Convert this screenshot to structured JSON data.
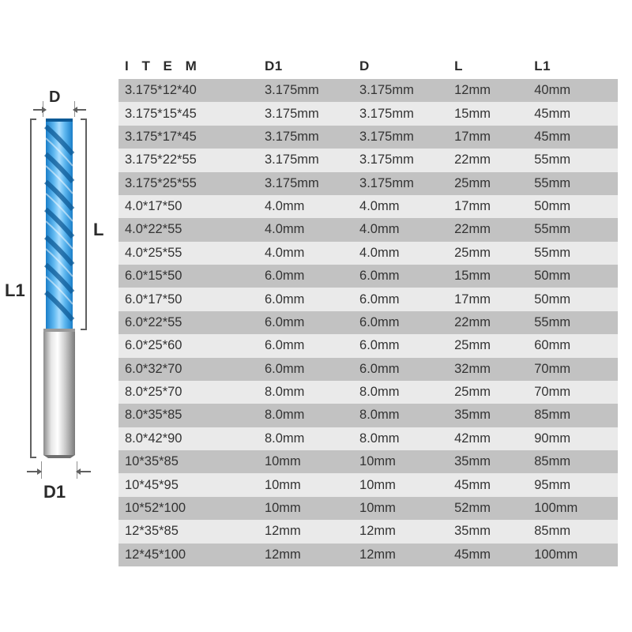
{
  "diagram": {
    "labels": {
      "D": "D",
      "L": "L",
      "L1": "L1",
      "D1": "D1"
    },
    "bit_colors": {
      "flute_blue_light": "#5fb8f0",
      "flute_blue_dark": "#1a7ec8",
      "flute_highlight": "#a8ddff",
      "shank_light": "#f0f0f0",
      "shank_mid": "#c8c8c8",
      "shank_dark": "#8a8a8a"
    },
    "label_color": "#2b2b2b",
    "arrow_color": "#606060"
  },
  "table": {
    "columns": [
      "I T E M",
      "D1",
      "D",
      "L",
      "L1"
    ],
    "column_widths_pct": [
      28,
      19,
      19,
      16,
      18
    ],
    "header_fontsize": 17,
    "cell_fontsize": 16.5,
    "text_color": "#333333",
    "stripe_colors": [
      "#c2c2c2",
      "#eaeaea"
    ],
    "rows": [
      [
        "3.175*12*40",
        "3.175mm",
        "3.175mm",
        "12mm",
        "40mm"
      ],
      [
        "3.175*15*45",
        "3.175mm",
        "3.175mm",
        "15mm",
        "45mm"
      ],
      [
        "3.175*17*45",
        "3.175mm",
        "3.175mm",
        "17mm",
        "45mm"
      ],
      [
        "3.175*22*55",
        "3.175mm",
        "3.175mm",
        "22mm",
        "55mm"
      ],
      [
        "3.175*25*55",
        "3.175mm",
        "3.175mm",
        "25mm",
        "55mm"
      ],
      [
        "4.0*17*50",
        "4.0mm",
        "4.0mm",
        "17mm",
        "50mm"
      ],
      [
        "4.0*22*55",
        "4.0mm",
        "4.0mm",
        "22mm",
        "55mm"
      ],
      [
        "4.0*25*55",
        "4.0mm",
        "4.0mm",
        "25mm",
        "55mm"
      ],
      [
        "6.0*15*50",
        "6.0mm",
        "6.0mm",
        "15mm",
        "50mm"
      ],
      [
        "6.0*17*50",
        "6.0mm",
        "6.0mm",
        "17mm",
        "50mm"
      ],
      [
        "6.0*22*55",
        "6.0mm",
        "6.0mm",
        "22mm",
        "55mm"
      ],
      [
        "6.0*25*60",
        "6.0mm",
        "6.0mm",
        "25mm",
        "60mm"
      ],
      [
        "6.0*32*70",
        "6.0mm",
        "6.0mm",
        "32mm",
        "70mm"
      ],
      [
        "8.0*25*70",
        "8.0mm",
        "8.0mm",
        "25mm",
        "70mm"
      ],
      [
        "8.0*35*85",
        "8.0mm",
        "8.0mm",
        "35mm",
        "85mm"
      ],
      [
        "8.0*42*90",
        "8.0mm",
        "8.0mm",
        "42mm",
        "90mm"
      ],
      [
        "10*35*85",
        "10mm",
        "10mm",
        "35mm",
        "85mm"
      ],
      [
        "10*45*95",
        "10mm",
        "10mm",
        "45mm",
        "95mm"
      ],
      [
        "10*52*100",
        "10mm",
        "10mm",
        "52mm",
        "100mm"
      ],
      [
        "12*35*85",
        "12mm",
        "12mm",
        "35mm",
        "85mm"
      ],
      [
        "12*45*100",
        "12mm",
        "12mm",
        "45mm",
        "100mm"
      ]
    ]
  }
}
